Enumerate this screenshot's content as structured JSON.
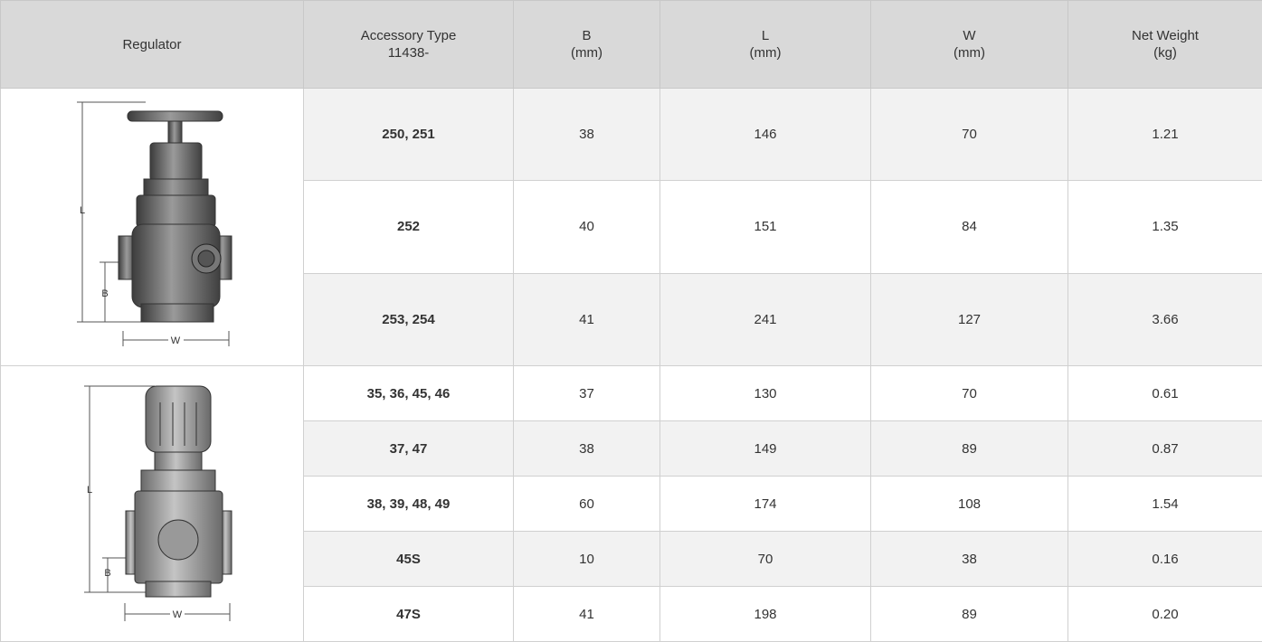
{
  "table": {
    "header": [
      [
        "Regulator"
      ],
      [
        "Accessory Type",
        "11438-"
      ],
      [
        "B",
        "(mm)"
      ],
      [
        "L",
        "(mm)"
      ],
      [
        "W",
        "(mm)"
      ],
      [
        "Net Weight",
        "(kg)"
      ]
    ],
    "groups": [
      {
        "image_labels": {
          "length": "L",
          "base": "B",
          "width": "W"
        },
        "rows": [
          [
            "250, 251",
            "38",
            "146",
            "70",
            "1.21"
          ],
          [
            "252",
            "40",
            "151",
            "84",
            "1.35"
          ],
          [
            "253, 254",
            "41",
            "241",
            "127",
            "3.66"
          ]
        ]
      },
      {
        "image_labels": {
          "length": "L",
          "base": "B",
          "width": "W"
        },
        "rows": [
          [
            "35, 36, 45, 46",
            "37",
            "130",
            "70",
            "0.61"
          ],
          [
            "37, 47",
            "38",
            "149",
            "89",
            "0.87"
          ],
          [
            "38, 39, 48, 49",
            "60",
            "174",
            "108",
            "1.54"
          ],
          [
            "45S",
            "10",
            "70",
            "38",
            "0.16"
          ],
          [
            "47S",
            "41",
            "198",
            "89",
            "0.20"
          ]
        ]
      }
    ]
  }
}
